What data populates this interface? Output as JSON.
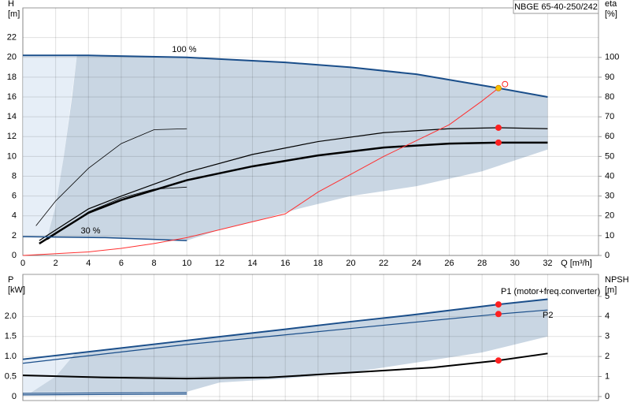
{
  "chart_data": [
    {
      "type": "line",
      "title": "NBGE 65-40-250/242",
      "ylabel": [
        "H",
        "[m]"
      ],
      "y2label": [
        "eta",
        "[%]"
      ],
      "xlabel": "Q [m³/h]",
      "xlim": [
        0,
        35.1
      ],
      "ylim": [
        0,
        25
      ],
      "y2lim": [
        0,
        125
      ],
      "xticks": [
        0,
        2,
        4,
        6,
        8,
        10,
        12,
        14,
        16,
        18,
        20,
        22,
        24,
        26,
        28,
        30,
        32
      ],
      "yticks": [
        0,
        2,
        4,
        6,
        8,
        10,
        12,
        14,
        16,
        18,
        20,
        22
      ],
      "y2ticks": [
        0,
        10,
        20,
        30,
        40,
        50,
        60,
        70,
        80,
        90,
        100
      ],
      "grid": true,
      "bands": [
        {
          "color": "#e6eef7",
          "x": [
            0,
            3.3,
            2.5,
            2,
            1.5,
            0
          ],
          "y": [
            20.2,
            20.2,
            10,
            5,
            1.9,
            1.9
          ]
        },
        {
          "color": "#c9d6e3",
          "x": [
            1.5,
            2,
            2.5,
            3,
            3.3,
            10,
            16,
            20,
            24,
            29,
            32,
            32,
            28,
            24,
            20,
            17,
            14,
            12,
            10,
            5,
            1.5
          ],
          "y": [
            1.9,
            5,
            10,
            16,
            20.2,
            20,
            19.5,
            19,
            18.3,
            16.9,
            16,
            10.7,
            8.5,
            7,
            6,
            4.8,
            3.4,
            2.6,
            1.5,
            1.8,
            1.9
          ]
        }
      ],
      "series": [
        {
          "name": "100 %",
          "color": "#1a4e8a",
          "width": 2,
          "x": [
            0,
            4,
            10,
            16,
            20,
            24,
            29,
            32
          ],
          "values": [
            20.2,
            20.2,
            20,
            19.5,
            19,
            18.3,
            16.9,
            16
          ]
        },
        {
          "color": "#000000",
          "width": 1.2,
          "x": [
            1,
            4,
            6,
            10,
            14,
            18,
            22,
            26,
            29,
            32
          ],
          "values": [
            1.5,
            4.7,
            6,
            8.4,
            10.2,
            11.5,
            12.4,
            12.8,
            12.9,
            12.8
          ]
        },
        {
          "color": "#000000",
          "width": 2.5,
          "x": [
            1,
            4,
            6,
            10,
            14,
            18,
            22,
            26,
            29,
            32
          ],
          "values": [
            1.2,
            4.3,
            5.6,
            7.6,
            9,
            10.1,
            10.9,
            11.3,
            11.4,
            11.4
          ]
        },
        {
          "color": "#000000",
          "width": 0.8,
          "x": [
            0.8,
            2,
            4,
            6,
            8,
            10
          ],
          "values": [
            3,
            5.5,
            8.8,
            11.3,
            12.7,
            12.8
          ]
        },
        {
          "color": "#000000",
          "width": 0.8,
          "x": [
            1.5,
            4,
            6,
            8,
            10
          ],
          "values": [
            1.6,
            4.4,
            5.8,
            6.7,
            6.9
          ]
        },
        {
          "name": "30 %",
          "color": "#1a4e8a",
          "width": 1.5,
          "x": [
            0,
            5,
            10
          ],
          "values": [
            1.9,
            1.8,
            1.5
          ]
        },
        {
          "color": "#ff3030",
          "width": 1,
          "axis": "y2",
          "x": [
            0,
            4,
            6,
            8,
            10,
            12,
            14,
            16,
            18,
            20,
            22,
            24,
            26,
            28,
            29
          ],
          "values": [
            0,
            1.8,
            3.6,
            6,
            9,
            13,
            17,
            21,
            32,
            41,
            50,
            58,
            66,
            78,
            84.5
          ]
        }
      ],
      "markers": [
        {
          "x": 29,
          "y": 12.9,
          "color": "#ff2020"
        },
        {
          "x": 29,
          "y": 11.4,
          "color": "#ff2020"
        },
        {
          "x": 29,
          "y": 16.9,
          "color": "#f5c400"
        },
        {
          "x": 29.4,
          "y": 17.3,
          "color": "#ff2020",
          "hollow": true
        }
      ]
    },
    {
      "type": "line",
      "ylabel": [
        "P",
        "[kW]"
      ],
      "y2label": [
        "NPSH",
        "[m]"
      ],
      "xlim": [
        0,
        35.1
      ],
      "ylim": [
        -0.1,
        3.05
      ],
      "y2lim": [
        -0.2,
        6.1
      ],
      "yticks": [
        0,
        0.5,
        {
          "value": 1,
          "label": "1.0"
        },
        1.5,
        {
          "value": 2,
          "label": "2.0"
        }
      ],
      "y2ticks": [
        0,
        1,
        2,
        3,
        4,
        5
      ],
      "grid": true,
      "bands": [
        {
          "color": "#e6eef7",
          "x": [
            0,
            3.2,
            2,
            0.5,
            0
          ],
          "y": [
            0.95,
            1.08,
            0.5,
            0.1,
            0.1
          ]
        },
        {
          "color": "#c9d6e3",
          "x": [
            0.5,
            2,
            3.2,
            10,
            16,
            20,
            24,
            29,
            32,
            32,
            28,
            24,
            20,
            16,
            12,
            10,
            0.5
          ],
          "y": [
            0.1,
            0.5,
            1.08,
            1.4,
            1.68,
            1.87,
            2.05,
            2.3,
            2.43,
            1.5,
            1.1,
            0.85,
            0.6,
            0.45,
            0.35,
            0.12,
            0.1
          ]
        }
      ],
      "series": [
        {
          "name": "P1 (motor+freq.converter)",
          "color": "#1a4e8a",
          "width": 2,
          "x": [
            0,
            3.2,
            10,
            16,
            20,
            24,
            29,
            32
          ],
          "values": [
            0.93,
            1.08,
            1.4,
            1.68,
            1.87,
            2.05,
            2.3,
            2.43
          ]
        },
        {
          "name": "P2",
          "color": "#1a4e8a",
          "width": 1.2,
          "x": [
            0,
            10,
            20,
            29,
            32
          ],
          "values": [
            0.83,
            1.3,
            1.7,
            2.06,
            2.16
          ]
        },
        {
          "color": "#000000",
          "width": 2,
          "axis": "y2",
          "x": [
            0,
            5,
            10,
            15,
            20,
            25,
            29,
            32
          ],
          "values": [
            1.06,
            0.95,
            0.9,
            0.95,
            1.2,
            1.45,
            1.8,
            2.15
          ]
        },
        {
          "color": "#1a4e8a",
          "width": 1.2,
          "x": [
            0,
            10
          ],
          "values": [
            0.08,
            0.1
          ]
        },
        {
          "color": "#1a4e8a",
          "width": 1.2,
          "x": [
            0,
            10
          ],
          "values": [
            0.04,
            0.06
          ]
        }
      ],
      "markers": [
        {
          "x": 29,
          "y": 2.3,
          "color": "#ff2020"
        },
        {
          "x": 29,
          "y": 2.06,
          "color": "#ff2020"
        },
        {
          "x": 29,
          "y": 1.8,
          "color": "#ff2020",
          "axis": "y2"
        }
      ]
    }
  ]
}
